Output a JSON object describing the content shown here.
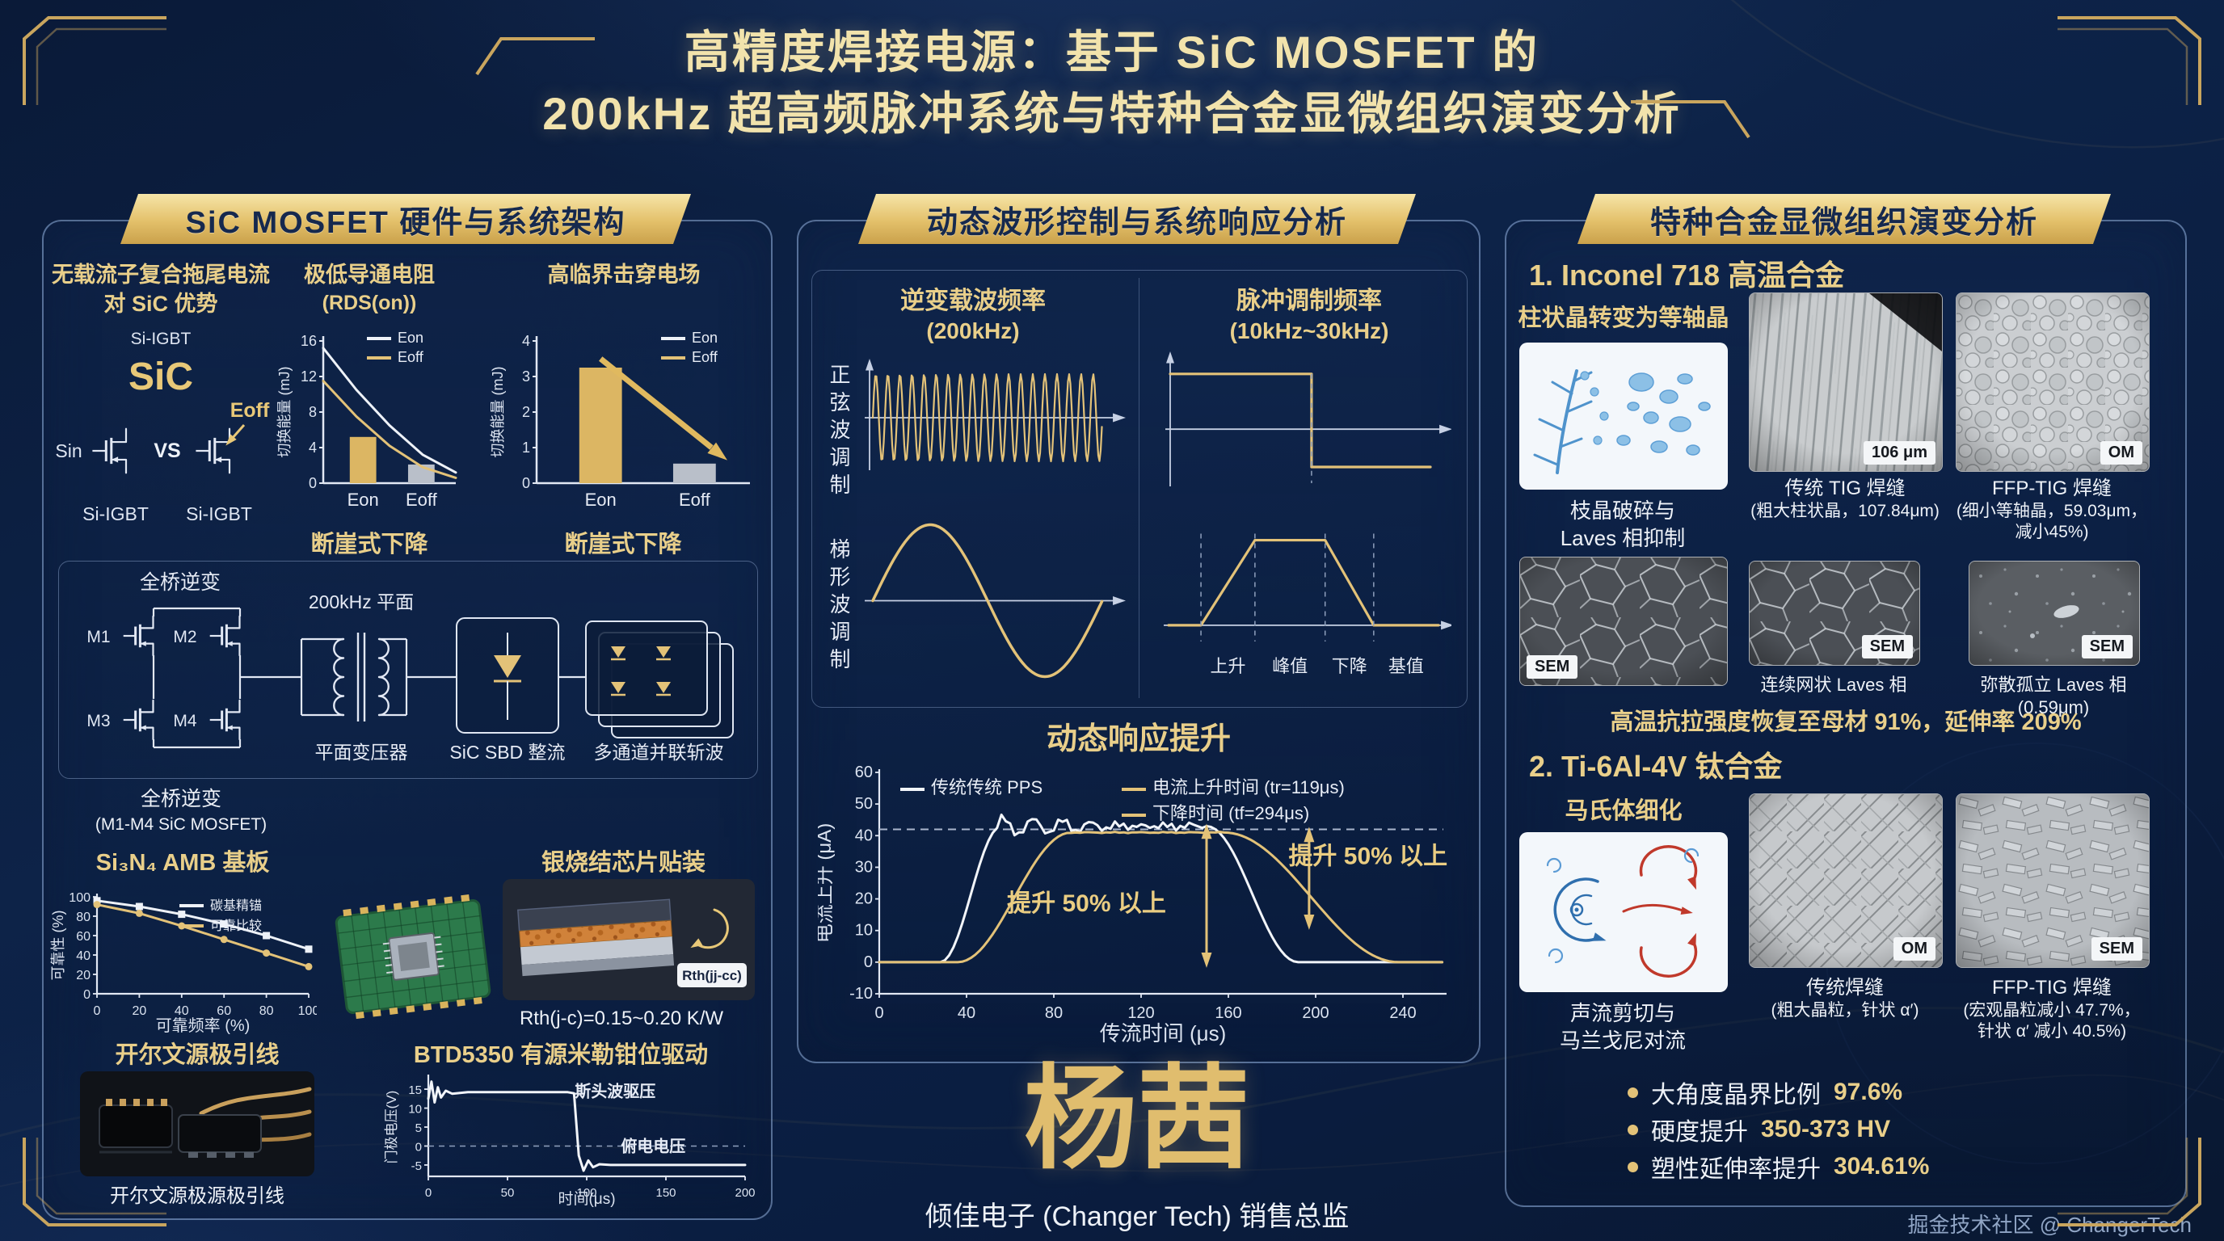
{
  "page": {
    "title_line1": "高精度焊接电源：基于 SiC MOSFET 的",
    "title_line2": "200kHz 超高频脉冲系统与特种合金显微组织演变分析",
    "footer": "掘金技术社区 @ ChangerTech"
  },
  "col1": {
    "header": "SiC MOSFET 硬件与系统架构",
    "sec_tail": {
      "title1": "无载流子复合拖尾电流",
      "title2": "对 SiC 优势",
      "si_igbt_top": "Si-IGBT",
      "sic": "SiC",
      "sin": "Sin",
      "vs": "VS",
      "eoff": "Eoff",
      "cap_left": "Si-IGBT",
      "cap_right": "Si-IGBT"
    },
    "sec_rdson": {
      "title1": "极低导通电阻",
      "title2": "(RDS(on))",
      "caption": "断崖式下降"
    },
    "sec_field": {
      "title": "高临界击穿电场",
      "caption": "断崖式下降"
    },
    "bridge": {
      "top_label": "全桥逆变",
      "m": [
        "M1",
        "M2",
        "M3",
        "M4"
      ],
      "planar": "200kHz 平面",
      "transformer": "平面变压器",
      "rectifier": "SiC SBD 整流",
      "chopper": "多通道并联斩波",
      "cap1": "全桥逆变",
      "cap2": "(M1-M4 SiC MOSFET)"
    },
    "amb": {
      "title": "Si₃N₄ AMB 基板"
    },
    "sinter": {
      "title": "银烧结芯片贴装",
      "rth_tag": "Rth(jj-cc)",
      "caption": "Rth(j-c)=0.15~0.20 K/W"
    },
    "kelvin": {
      "title": "开尔文源极引线",
      "caption": "开尔文源极源极引线"
    },
    "btd": {
      "title": "BTD5350 有源米勒钳位驱动"
    }
  },
  "col2": {
    "header": "动态波形控制与系统响应分析",
    "carrier": {
      "title1": "逆变载波频率",
      "title2": "(200kHz)",
      "label_sine": "正弦波调制",
      "label_trap": "梯形波调制"
    },
    "pulse": {
      "title1": "脉冲调制频率",
      "title2": "(10kHz~30kHz)"
    },
    "response": {
      "title": "动态响应提升"
    },
    "signature": {
      "name": "杨茜",
      "role": "倾佳电子 (Changer Tech) 销售总监"
    }
  },
  "col3": {
    "header": "特种合金显微组织演变分析",
    "inconel": {
      "title": "1. Inconel 718 高温合金",
      "subtitle": "柱状晶转变为等轴晶",
      "dendrite_cap1": "枝晶破碎与",
      "dendrite_cap2": "Laves 相抑制",
      "tig_cap1": "传统 TIG 焊缝",
      "tig_cap2": "(粗大柱状晶，107.84μm)",
      "tig_badge": "106 μm",
      "ffp_cap1": "FFP-TIG 焊缝",
      "ffp_cap2": "(细小等轴晶，59.03μm，",
      "ffp_cap3": "减小45%)",
      "ffp_badge": "OM",
      "sem_badge": "SEM",
      "laves_net": "连续网状 Laves 相",
      "laves_iso": "弥散孤立 Laves 相 (0.59μm)",
      "strength": "高温抗拉强度恢复至母材 91%，延伸率 209%"
    },
    "ti": {
      "title": "2. Ti-6Al-4V 钛合金",
      "subtitle": "马氏体细化",
      "flow_cap1": "声流剪切与",
      "flow_cap2": "马兰戈尼对流",
      "trad_cap1": "传统焊缝",
      "trad_cap2": "(粗大晶粒，针状 α′)",
      "trad_badge": "OM",
      "ffp_cap1": "FFP-TIG 焊缝",
      "ffp_cap2": "(宏观晶粒减小 47.7%，",
      "ffp_cap3": "针状 α′ 减小 40.5%)",
      "ffp_badge": "SEM",
      "bullets": [
        {
          "label": "大角度晶界比例",
          "value": "97.6%"
        },
        {
          "label": "硬度提升",
          "value": "350-373 HV"
        },
        {
          "label": "塑性延伸率提升",
          "value": "304.61%"
        }
      ]
    }
  },
  "chart_data": {
    "rdson": {
      "type": "bar",
      "ylabel": "切换能量 (mJ)",
      "ylim": [
        0,
        16
      ],
      "yticks": [
        0,
        4,
        8,
        12,
        16
      ],
      "categories": [
        "Eon",
        "Eoff"
      ],
      "values": [
        5.2,
        2.1
      ],
      "bar_colors": [
        "#dcb663",
        "#b9bfc9"
      ],
      "legend": [
        {
          "label": "Eon",
          "color": "#eef2f8"
        },
        {
          "label": "Eoff",
          "color": "#e3c278"
        }
      ],
      "lines": [
        {
          "color": "#eef2f8",
          "x": [
            0,
            0.25,
            0.5,
            0.75,
            1
          ],
          "y": [
            15.2,
            10.5,
            6.5,
            3.2,
            1.2
          ]
        },
        {
          "color": "#e3c278",
          "x": [
            0,
            0.25,
            0.5,
            0.75,
            1
          ],
          "y": [
            11.5,
            7.5,
            4.2,
            1.8,
            0.6
          ]
        }
      ],
      "caption": "断崖式下降"
    },
    "field": {
      "type": "bar",
      "ylabel": "切换能量 (mJ)",
      "ylim": [
        0,
        4
      ],
      "yticks": [
        0,
        1,
        2,
        3,
        4
      ],
      "categories": [
        "Eon",
        "Eoff"
      ],
      "values": [
        3.25,
        0.55
      ],
      "bar_colors": [
        "#dcb663",
        "#b9bfc9"
      ],
      "legend": [
        {
          "label": "Eon",
          "color": "#eef2f8"
        },
        {
          "label": "Eoff",
          "color": "#e3c278"
        }
      ],
      "arrow": {
        "from": [
          0.3,
          3.5
        ],
        "to": [
          0.82,
          1.0
        ]
      },
      "caption": "断崖式下降"
    },
    "amb": {
      "type": "line",
      "ylabel": "可靠性 (%)",
      "xlabel": "可靠频率 (%)",
      "xlim": [
        0,
        100
      ],
      "ylim": [
        0,
        100
      ],
      "xticks": [
        0,
        20,
        40,
        60,
        80,
        100
      ],
      "yticks": [
        0,
        20,
        40,
        60,
        80,
        100
      ],
      "series": [
        {
          "name": "碳基精锚",
          "color": "#eef2f8",
          "marker": "square",
          "x": [
            0,
            20,
            40,
            60,
            80,
            100
          ],
          "y": [
            96,
            90,
            82,
            72,
            60,
            46
          ]
        },
        {
          "name": "可靠比较",
          "color": "#e3c278",
          "marker": "circle",
          "x": [
            0,
            20,
            40,
            60,
            80,
            100
          ],
          "y": [
            92,
            83,
            70,
            56,
            42,
            28
          ]
        }
      ]
    },
    "btd": {
      "type": "line",
      "ylabel": "门极电压(V)",
      "xlabel": "时间(μs)",
      "xlim": [
        0,
        200
      ],
      "ylim": [
        -8,
        18
      ],
      "xticks": [
        0,
        50,
        100,
        150,
        200
      ],
      "yticks": [
        -5,
        0,
        5,
        10,
        15
      ],
      "zero_dashed": true,
      "annotations": [
        {
          "text": "斯头波驱压",
          "x": 118,
          "y": 13,
          "size": 20,
          "color": "#e6ebf5"
        },
        {
          "text": "俯电电压",
          "x": 142,
          "y": -1.5,
          "size": 20,
          "color": "#e6ebf5"
        }
      ],
      "series": [
        {
          "color": "#f2f5fa",
          "x": [
            0,
            2,
            4,
            6,
            8,
            11,
            15,
            25,
            60,
            88,
            92,
            95,
            98,
            101,
            104,
            108,
            115,
            200
          ],
          "y": [
            12.5,
            17,
            11.5,
            15.5,
            12.8,
            14.6,
            13.8,
            14.2,
            14.2,
            14.2,
            13.9,
            -2.5,
            -6.5,
            -3.8,
            -5.6,
            -4.8,
            -5,
            -5
          ]
        }
      ]
    },
    "carrier_sine": {
      "type": "waveform",
      "wave": "sine-burst",
      "cycles": 19,
      "amplitude": 0.72,
      "color": "#e3c278"
    },
    "carrier_trap": {
      "type": "waveform",
      "wave": "sine",
      "cycles": 1,
      "amplitude": 0.8,
      "color": "#e3c278"
    },
    "pulse_square": {
      "type": "waveform",
      "wave": "square",
      "duty": 0.55,
      "color": "#e3c278"
    },
    "pulse_trap": {
      "type": "waveform",
      "wave": "trapezoid",
      "segments": [
        0.12,
        0.32,
        0.58,
        0.76
      ],
      "color": "#e3c278",
      "phases": [
        "上升",
        "峰值",
        "下降",
        "基值"
      ]
    },
    "response": {
      "type": "line",
      "ylabel": "电流上升 (μA)",
      "xlabel": "传流时间 (μs)",
      "xlim": [
        0,
        260
      ],
      "ylim": [
        -10,
        60
      ],
      "xticks": [
        0,
        40,
        80,
        120,
        160,
        200,
        240
      ],
      "yticks": [
        -10,
        0,
        10,
        20,
        30,
        40,
        50,
        60
      ],
      "dashed_level": 42,
      "legend": [
        {
          "label": "传统传统 PPS",
          "color": "#f2f5fa"
        },
        {
          "label": "电流上升时间 (tr=119μs)",
          "color": "#e3c278"
        },
        {
          "label": "下降时间 (tf=294μs)",
          "color": "#e3c278"
        }
      ],
      "series": [
        {
          "color": "#f2f5fa",
          "rise": [
            28,
            56
          ],
          "level": 43,
          "fall": [
            150,
            192
          ],
          "noise": 1.6,
          "overshoot": 3.5
        },
        {
          "color": "#e3c278",
          "rise": [
            36,
            88
          ],
          "level": 41,
          "fall": [
            158,
            238
          ],
          "noise": 0.2,
          "overshoot": 0
        }
      ],
      "arrows": [
        {
          "x": 150,
          "y1": 0,
          "y2": 42
        },
        {
          "x": 197,
          "y1": 12,
          "y2": 41
        }
      ],
      "annotations": [
        {
          "text": "提升 50% 以上",
          "x": 95,
          "y": 16,
          "size": 30
        },
        {
          "text": "提升 50% 以上",
          "x": 224,
          "y": 31,
          "size": 30
        }
      ]
    }
  }
}
